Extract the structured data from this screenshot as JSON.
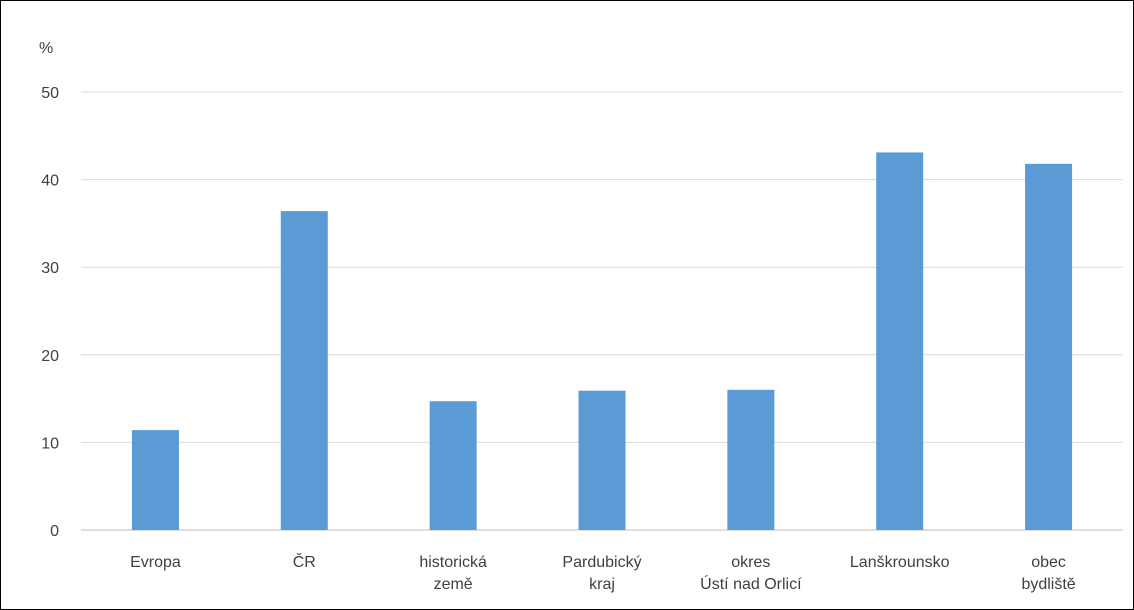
{
  "chart_data": {
    "type": "bar",
    "ylabel": "%",
    "ylim": [
      0,
      50
    ],
    "yticks": [
      0,
      10,
      20,
      30,
      40,
      50
    ],
    "grid": true,
    "categories": [
      [
        "Evropa"
      ],
      [
        "ČR"
      ],
      [
        "historická",
        "země"
      ],
      [
        "Pardubický",
        "kraj"
      ],
      [
        "okres",
        "Ústí nad Orlicí"
      ],
      [
        "Lanškrounsko"
      ],
      [
        "obec",
        "bydliště"
      ]
    ],
    "values": [
      11.4,
      36.4,
      14.7,
      15.9,
      16.0,
      43.1,
      41.8
    ],
    "colors": {
      "bar": "#5b9bd5",
      "grid": "#d9d9d9",
      "axis": "#bfbfbf",
      "text": "#404040"
    }
  }
}
